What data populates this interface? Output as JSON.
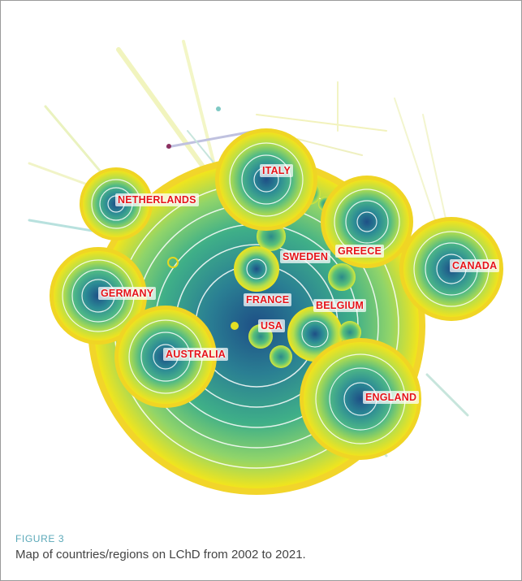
{
  "figure": {
    "label": "FIGURE 3",
    "caption": "Map of countries/regions on LChD from 2002 to 2021."
  },
  "nodes": [
    {
      "id": "italy",
      "label": "ITALY"
    },
    {
      "id": "netherlands",
      "label": "NETHERLANDS"
    },
    {
      "id": "greece",
      "label": "GREECE"
    },
    {
      "id": "sweden",
      "label": "SWEDEN"
    },
    {
      "id": "canada",
      "label": "CANADA"
    },
    {
      "id": "germany",
      "label": "GERMANY"
    },
    {
      "id": "france",
      "label": "FRANCE"
    },
    {
      "id": "belgium",
      "label": "BELGIUM"
    },
    {
      "id": "usa",
      "label": "USA"
    },
    {
      "id": "australia",
      "label": "AUSTRALIA"
    },
    {
      "id": "england",
      "label": "ENGLAND"
    }
  ],
  "colors": {
    "ring_outer": "#f2e51c",
    "ring_inner": "#2f8f9a",
    "core": "#1e3f7a",
    "label": "#e5141a",
    "figure_label": "#5aa8b8"
  }
}
